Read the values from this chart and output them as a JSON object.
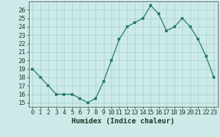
{
  "x": [
    0,
    1,
    2,
    3,
    4,
    5,
    6,
    7,
    8,
    9,
    10,
    11,
    12,
    13,
    14,
    15,
    16,
    17,
    18,
    19,
    20,
    21,
    22,
    23
  ],
  "y": [
    19,
    18,
    17,
    16,
    16,
    16,
    15.5,
    15,
    15.5,
    17.5,
    20,
    22.5,
    24,
    24.5,
    25,
    26.5,
    25.5,
    23.5,
    24,
    25,
    24,
    22.5,
    20.5,
    18
  ],
  "line_color": "#2d7d6e",
  "marker_color": "#2d7d6e",
  "bg_color": "#cceae8",
  "grid_color": "#aad4d0",
  "xlabel": "Humidex (Indice chaleur)",
  "ylim": [
    14.5,
    27
  ],
  "xlim": [
    -0.5,
    23.5
  ],
  "yticks": [
    15,
    16,
    17,
    18,
    19,
    20,
    21,
    22,
    23,
    24,
    25,
    26
  ],
  "xticks": [
    0,
    1,
    2,
    3,
    4,
    5,
    6,
    7,
    8,
    9,
    10,
    11,
    12,
    13,
    14,
    15,
    16,
    17,
    18,
    19,
    20,
    21,
    22,
    23
  ],
  "font_color": "#1a3a2a",
  "xlabel_fontsize": 7.5,
  "tick_fontsize": 6.5,
  "linewidth": 1.0,
  "markersize": 2.5
}
